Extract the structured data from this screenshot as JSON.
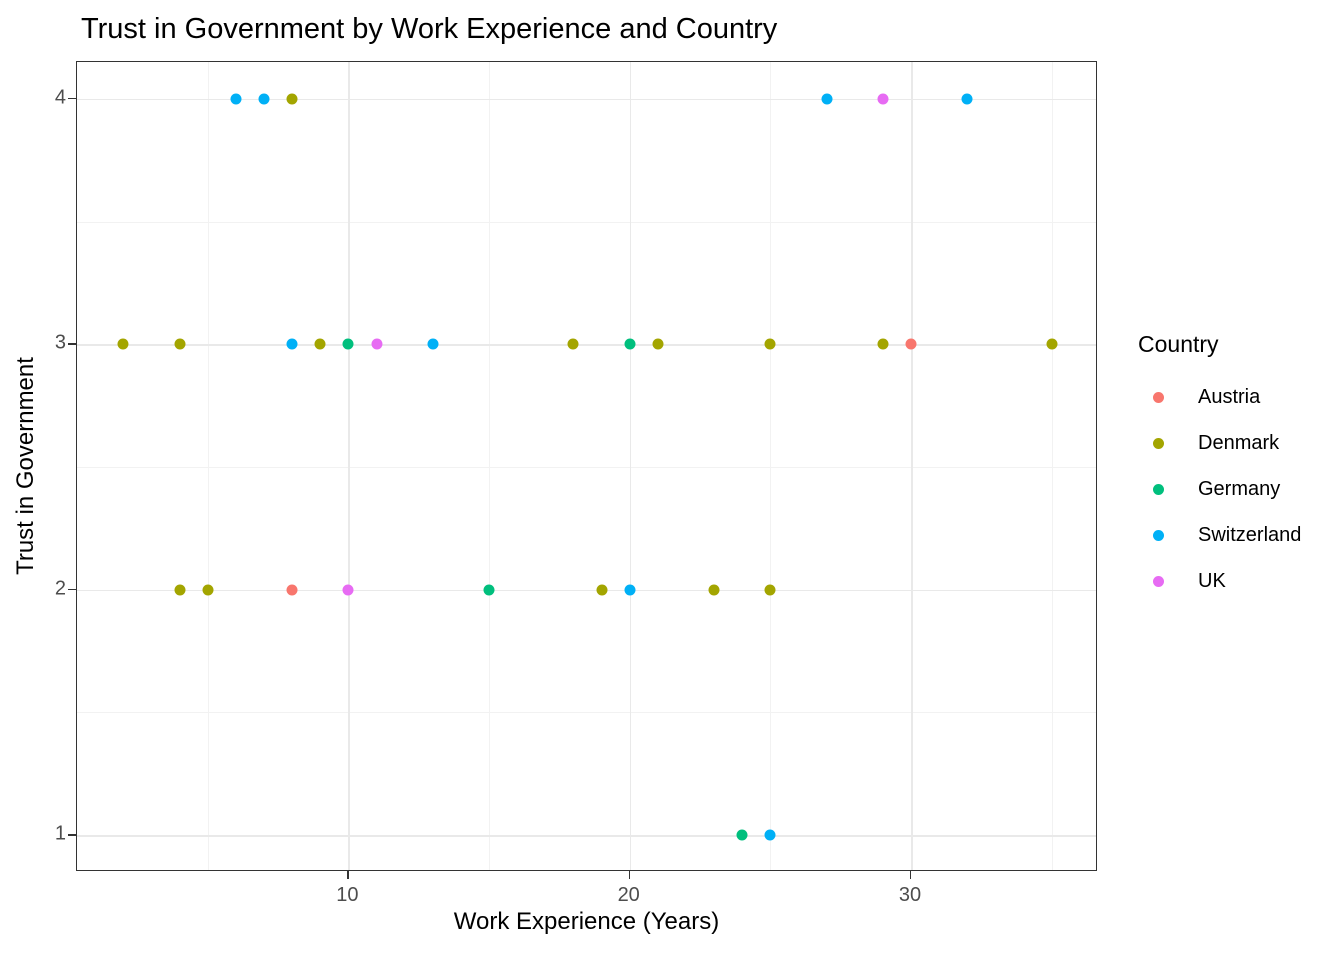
{
  "chart_data": {
    "type": "scatter",
    "title": "Trust in Government by Work Experience and Country",
    "xlabel": "Work Experience (Years)",
    "ylabel": "Trust in Government",
    "xlim": [
      0.35,
      36.65
    ],
    "ylim": [
      0.85,
      4.15
    ],
    "x_major_ticks": [
      10,
      20,
      30
    ],
    "x_minor_gridlines": [
      5,
      15,
      25,
      35
    ],
    "y_major_ticks": [
      1,
      2,
      3,
      4
    ],
    "y_minor_gridlines": [
      1.5,
      2.5,
      3.5
    ],
    "grid": true,
    "legend_position": "right",
    "legend_title": "Country",
    "series": [
      {
        "name": "Austria",
        "color": "#F8766D",
        "points": [
          [
            8,
            2
          ],
          [
            30,
            3
          ]
        ]
      },
      {
        "name": "Denmark",
        "color": "#A3A500",
        "points": [
          [
            2,
            3
          ],
          [
            4,
            3
          ],
          [
            4,
            2
          ],
          [
            5,
            2
          ],
          [
            8,
            4
          ],
          [
            9,
            3
          ],
          [
            18,
            3
          ],
          [
            19,
            2
          ],
          [
            21,
            3
          ],
          [
            23,
            2
          ],
          [
            25,
            3
          ],
          [
            25,
            2
          ],
          [
            29,
            3
          ],
          [
            35,
            3
          ]
        ]
      },
      {
        "name": "Germany",
        "color": "#00BF7D",
        "points": [
          [
            10,
            3
          ],
          [
            15,
            2
          ],
          [
            20,
            3
          ],
          [
            24,
            1
          ]
        ]
      },
      {
        "name": "Switzerland",
        "color": "#00B0F6",
        "points": [
          [
            6,
            4
          ],
          [
            7,
            4
          ],
          [
            8,
            3
          ],
          [
            13,
            3
          ],
          [
            20,
            2
          ],
          [
            25,
            1
          ],
          [
            27,
            4
          ],
          [
            32,
            4
          ]
        ]
      },
      {
        "name": "UK",
        "color": "#E76BF3",
        "points": [
          [
            10,
            2
          ],
          [
            11,
            3
          ],
          [
            29,
            4
          ]
        ]
      }
    ]
  }
}
